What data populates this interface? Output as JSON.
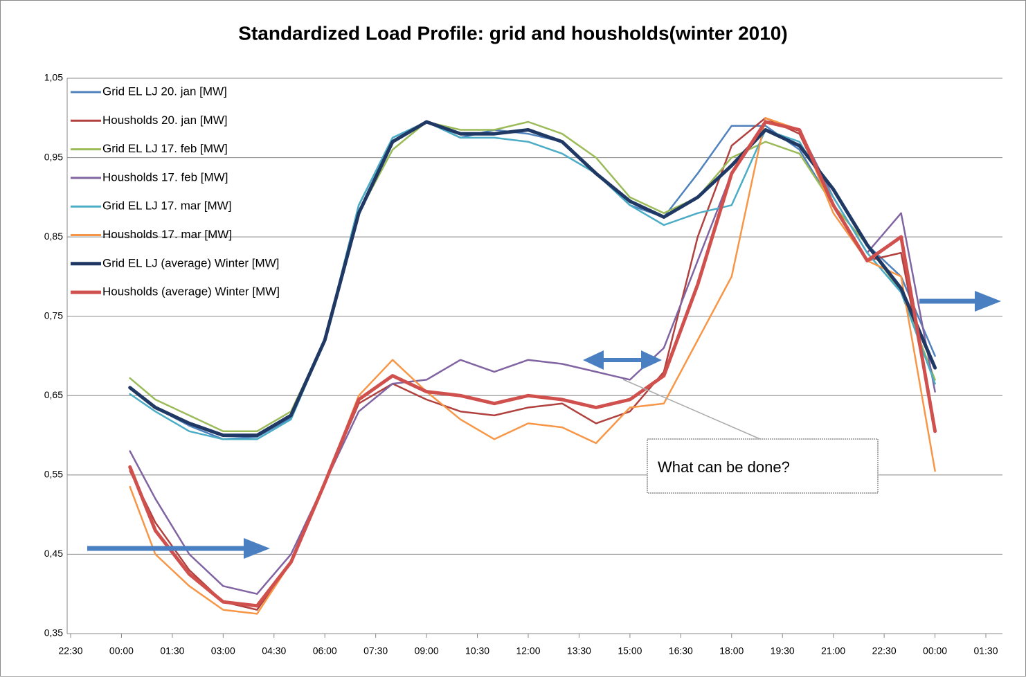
{
  "chart_data": {
    "type": "line",
    "title": "Standardized Load  Profile: grid and housholds(winter 2010)",
    "annotation": "What can be done?",
    "x": [
      0.25,
      1,
      2,
      3,
      4,
      5,
      6,
      7,
      8,
      9,
      10,
      11,
      12,
      13,
      14,
      15,
      16,
      17,
      18,
      19,
      20,
      21,
      22,
      23,
      24
    ],
    "series": [
      {
        "name": "Grid EL LJ 20. jan [MW]",
        "color": "#4f81bd",
        "values": [
          0.66,
          0.635,
          0.612,
          0.595,
          0.598,
          0.622,
          0.72,
          0.89,
          0.975,
          0.995,
          0.975,
          0.985,
          0.98,
          0.97,
          0.93,
          0.89,
          0.875,
          0.93,
          0.99,
          0.99,
          0.96,
          0.89,
          0.84,
          0.8,
          0.7
        ]
      },
      {
        "name": "Housholds 20. jan [MW]",
        "color": "#b0413e",
        "values": [
          0.555,
          0.49,
          0.43,
          0.39,
          0.38,
          0.44,
          0.54,
          0.64,
          0.665,
          0.645,
          0.63,
          0.625,
          0.635,
          0.64,
          0.615,
          0.63,
          0.68,
          0.85,
          0.965,
          1.0,
          0.98,
          0.89,
          0.82,
          0.83,
          0.61
        ]
      },
      {
        "name": "Grid EL LJ 17. feb [MW]",
        "color": "#9bbb59",
        "values": [
          0.672,
          0.645,
          0.625,
          0.605,
          0.605,
          0.63,
          0.72,
          0.88,
          0.96,
          0.995,
          0.985,
          0.985,
          0.995,
          0.98,
          0.95,
          0.9,
          0.88,
          0.9,
          0.95,
          0.97,
          0.955,
          0.89,
          0.84,
          0.78,
          0.67
        ]
      },
      {
        "name": "Housholds 17. feb  [MW]",
        "color": "#8064a2",
        "values": [
          0.58,
          0.52,
          0.45,
          0.41,
          0.4,
          0.45,
          0.54,
          0.63,
          0.665,
          0.67,
          0.695,
          0.68,
          0.695,
          0.69,
          0.68,
          0.67,
          0.71,
          0.82,
          0.93,
          0.995,
          0.985,
          0.9,
          0.83,
          0.88,
          0.655
        ]
      },
      {
        "name": "Grid EL LJ 17. mar [MW]",
        "color": "#4bacc6",
        "values": [
          0.652,
          0.63,
          0.605,
          0.595,
          0.595,
          0.62,
          0.72,
          0.89,
          0.975,
          0.995,
          0.975,
          0.975,
          0.97,
          0.955,
          0.93,
          0.89,
          0.865,
          0.88,
          0.89,
          0.985,
          0.97,
          0.9,
          0.83,
          0.78,
          0.665
        ]
      },
      {
        "name": "Housholds 17. mar [MW]",
        "color": "#f79646",
        "values": [
          0.535,
          0.45,
          0.41,
          0.38,
          0.375,
          0.44,
          0.54,
          0.65,
          0.695,
          0.655,
          0.62,
          0.595,
          0.615,
          0.61,
          0.59,
          0.635,
          0.64,
          0.72,
          0.8,
          1.0,
          0.985,
          0.88,
          0.82,
          0.8,
          0.555
        ]
      },
      {
        "name": "Grid EL LJ (average) Winter [MW]",
        "color": "#1f3864",
        "width": 5,
        "values": [
          0.66,
          0.635,
          0.615,
          0.6,
          0.6,
          0.625,
          0.72,
          0.88,
          0.97,
          0.995,
          0.98,
          0.98,
          0.985,
          0.97,
          0.93,
          0.895,
          0.875,
          0.9,
          0.94,
          0.985,
          0.965,
          0.91,
          0.84,
          0.785,
          0.685
        ]
      },
      {
        "name": "Housholds (average) Winter [MW]",
        "color": "#d0504d",
        "width": 5,
        "values": [
          0.56,
          0.48,
          0.425,
          0.39,
          0.385,
          0.44,
          0.54,
          0.645,
          0.675,
          0.655,
          0.65,
          0.64,
          0.65,
          0.645,
          0.635,
          0.645,
          0.675,
          0.79,
          0.93,
          0.995,
          0.985,
          0.89,
          0.82,
          0.85,
          0.605
        ]
      }
    ],
    "xlim": [
      -1.5,
      25.5
    ],
    "xticks": [
      {
        "value": -1.5,
        "label": "22:30"
      },
      {
        "value": 0,
        "label": "00:00"
      },
      {
        "value": 1.5,
        "label": "01:30"
      },
      {
        "value": 3,
        "label": "03:00"
      },
      {
        "value": 4.5,
        "label": "04:30"
      },
      {
        "value": 6,
        "label": "06:00"
      },
      {
        "value": 7.5,
        "label": "07:30"
      },
      {
        "value": 9,
        "label": "09:00"
      },
      {
        "value": 10.5,
        "label": "10:30"
      },
      {
        "value": 12,
        "label": "12:00"
      },
      {
        "value": 13.5,
        "label": "13:30"
      },
      {
        "value": 15,
        "label": "15:00"
      },
      {
        "value": 16.5,
        "label": "16:30"
      },
      {
        "value": 18,
        "label": "18:00"
      },
      {
        "value": 19.5,
        "label": "19:30"
      },
      {
        "value": 21,
        "label": "21:00"
      },
      {
        "value": 22.5,
        "label": "22:30"
      },
      {
        "value": 24,
        "label": "00:00"
      },
      {
        "value": 25.5,
        "label": "01:30"
      }
    ],
    "ylim": [
      0.35,
      1.05
    ],
    "yticks": [
      {
        "value": 0.35,
        "label": "0,35"
      },
      {
        "value": 0.45,
        "label": "0,45"
      },
      {
        "value": 0.55,
        "label": "0,55"
      },
      {
        "value": 0.65,
        "label": "0,65"
      },
      {
        "value": 0.75,
        "label": "0,75"
      },
      {
        "value": 0.85,
        "label": "0,85"
      },
      {
        "value": 0.95,
        "label": "0,95"
      },
      {
        "value": 1.05,
        "label": "1,05"
      }
    ],
    "grid": true,
    "legend": "upper left"
  }
}
